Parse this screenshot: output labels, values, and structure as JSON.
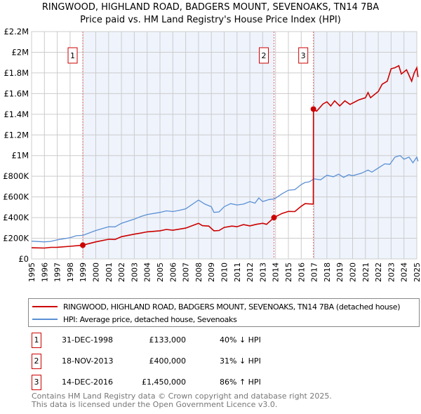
{
  "title_line1": "RINGWOOD, HIGHLAND ROAD, BADGERS MOUNT, SEVENOAKS, TN14 7BA",
  "title_line2": "Price paid vs. HM Land Registry's House Price Index (HPI)",
  "chart_data": {
    "type": "line",
    "xlim": [
      1995,
      2025
    ],
    "ylim": [
      0,
      2200000
    ],
    "yticks": [
      {
        "v": 0,
        "label": "£0"
      },
      {
        "v": 200000,
        "label": "£200K"
      },
      {
        "v": 400000,
        "label": "£400K"
      },
      {
        "v": 600000,
        "label": "£600K"
      },
      {
        "v": 800000,
        "label": "£800K"
      },
      {
        "v": 1000000,
        "label": "£1M"
      },
      {
        "v": 1200000,
        "label": "£1.2M"
      },
      {
        "v": 1400000,
        "label": "£1.4M"
      },
      {
        "v": 1600000,
        "label": "£1.6M"
      },
      {
        "v": 1800000,
        "label": "£1.8M"
      },
      {
        "v": 2000000,
        "label": "£2M"
      },
      {
        "v": 2200000,
        "label": "£2.2M"
      }
    ],
    "xticks": [
      "1995",
      "1996",
      "1997",
      "1998",
      "1999",
      "2000",
      "2001",
      "2002",
      "2003",
      "2004",
      "2005",
      "2006",
      "2007",
      "2008",
      "2009",
      "2010",
      "2011",
      "2012",
      "2013",
      "2014",
      "2015",
      "2016",
      "2017",
      "2018",
      "2019",
      "2020",
      "2021",
      "2022",
      "2023",
      "2024",
      "2025"
    ],
    "grid": true,
    "colors": {
      "property": "#cc0000",
      "hpi": "#5b8fd4",
      "shade": "#eef3fc"
    },
    "series": [
      {
        "name": "RINGWOOD, HIGHLAND ROAD, BADGERS MOUNT, SEVENOAKS, TN14 7BA (detached house)",
        "points": [
          [
            1995,
            108000
          ],
          [
            1996,
            105000
          ],
          [
            1996.5,
            112000
          ],
          [
            1997,
            113000
          ],
          [
            1998,
            122000
          ],
          [
            1998.99,
            133000
          ],
          [
            2000,
            165000
          ],
          [
            2001,
            190000
          ],
          [
            2001.5,
            188000
          ],
          [
            2002,
            215000
          ],
          [
            2003,
            240000
          ],
          [
            2003.5,
            250000
          ],
          [
            2004,
            262000
          ],
          [
            2005,
            272000
          ],
          [
            2005.5,
            285000
          ],
          [
            2006,
            278000
          ],
          [
            2007,
            298000
          ],
          [
            2008,
            345000
          ],
          [
            2008.3,
            322000
          ],
          [
            2008.8,
            318000
          ],
          [
            2009.2,
            272000
          ],
          [
            2009.6,
            275000
          ],
          [
            2010,
            305000
          ],
          [
            2010.6,
            318000
          ],
          [
            2011,
            312000
          ],
          [
            2011.5,
            332000
          ],
          [
            2012,
            320000
          ],
          [
            2012.5,
            335000
          ],
          [
            2013,
            345000
          ],
          [
            2013.3,
            335000
          ],
          [
            2013.88,
            400000
          ],
          [
            2014.5,
            440000
          ],
          [
            2015,
            460000
          ],
          [
            2015.5,
            458000
          ],
          [
            2016,
            510000
          ],
          [
            2016.3,
            535000
          ],
          [
            2016.94,
            530000
          ],
          [
            2016.95,
            1450000
          ],
          [
            2017.2,
            1430000
          ],
          [
            2017.7,
            1500000
          ],
          [
            2018,
            1520000
          ],
          [
            2018.3,
            1480000
          ],
          [
            2018.6,
            1530000
          ],
          [
            2019,
            1480000
          ],
          [
            2019.4,
            1530000
          ],
          [
            2019.8,
            1495000
          ],
          [
            2020.5,
            1540000
          ],
          [
            2021,
            1560000
          ],
          [
            2021.2,
            1610000
          ],
          [
            2021.4,
            1560000
          ],
          [
            2022,
            1620000
          ],
          [
            2022.3,
            1690000
          ],
          [
            2022.7,
            1720000
          ],
          [
            2023,
            1840000
          ],
          [
            2023.3,
            1850000
          ],
          [
            2023.6,
            1870000
          ],
          [
            2023.8,
            1790000
          ],
          [
            2024.2,
            1830000
          ],
          [
            2024.6,
            1720000
          ],
          [
            2024.8,
            1800000
          ],
          [
            2025,
            1850000
          ],
          [
            2025.1,
            1760000
          ]
        ]
      },
      {
        "name": "HPI: Average price, detached house, Sevenoaks",
        "points": [
          [
            1995,
            172000
          ],
          [
            1996,
            165000
          ],
          [
            1996.5,
            170000
          ],
          [
            1997,
            185000
          ],
          [
            1998,
            205000
          ],
          [
            1998.5,
            225000
          ],
          [
            1999,
            228000
          ],
          [
            2000,
            275000
          ],
          [
            2001,
            312000
          ],
          [
            2001.5,
            310000
          ],
          [
            2002,
            345000
          ],
          [
            2003,
            385000
          ],
          [
            2003.5,
            410000
          ],
          [
            2004,
            430000
          ],
          [
            2005,
            450000
          ],
          [
            2005.5,
            465000
          ],
          [
            2006,
            458000
          ],
          [
            2006.5,
            470000
          ],
          [
            2007,
            485000
          ],
          [
            2008,
            570000
          ],
          [
            2008.5,
            530000
          ],
          [
            2009,
            505000
          ],
          [
            2009.2,
            450000
          ],
          [
            2009.6,
            455000
          ],
          [
            2010,
            505000
          ],
          [
            2010.5,
            535000
          ],
          [
            2011,
            522000
          ],
          [
            2011.5,
            530000
          ],
          [
            2012,
            555000
          ],
          [
            2012.4,
            540000
          ],
          [
            2012.7,
            590000
          ],
          [
            2013,
            555000
          ],
          [
            2013.5,
            575000
          ],
          [
            2013.9,
            580000
          ],
          [
            2014.5,
            630000
          ],
          [
            2015,
            665000
          ],
          [
            2015.5,
            670000
          ],
          [
            2016,
            720000
          ],
          [
            2016.3,
            740000
          ],
          [
            2016.6,
            745000
          ],
          [
            2017,
            775000
          ],
          [
            2017.5,
            765000
          ],
          [
            2018,
            810000
          ],
          [
            2018.5,
            795000
          ],
          [
            2018.9,
            820000
          ],
          [
            2019.3,
            790000
          ],
          [
            2019.7,
            815000
          ],
          [
            2020,
            805000
          ],
          [
            2020.7,
            830000
          ],
          [
            2021.2,
            860000
          ],
          [
            2021.5,
            840000
          ],
          [
            2022,
            880000
          ],
          [
            2022.5,
            920000
          ],
          [
            2022.9,
            915000
          ],
          [
            2023.3,
            985000
          ],
          [
            2023.7,
            1000000
          ],
          [
            2024,
            965000
          ],
          [
            2024.4,
            985000
          ],
          [
            2024.7,
            930000
          ],
          [
            2025,
            985000
          ],
          [
            2025.1,
            945000
          ]
        ]
      }
    ],
    "sales": [
      {
        "n": "1",
        "x": 1998.99,
        "value": 133000
      },
      {
        "n": "2",
        "x": 2013.88,
        "value": 400000
      },
      {
        "n": "3",
        "x": 2016.95,
        "value": 1450000
      }
    ]
  },
  "legend": {
    "property": "RINGWOOD, HIGHLAND ROAD, BADGERS MOUNT, SEVENOAKS, TN14 7BA (detached house)",
    "hpi": "HPI: Average price, detached house, Sevenoaks"
  },
  "transactions": [
    {
      "n": "1",
      "date": "31-DEC-1998",
      "price": "£133,000",
      "hpi": "40% ↓ HPI"
    },
    {
      "n": "2",
      "date": "18-NOV-2013",
      "price": "£400,000",
      "hpi": "31% ↓ HPI"
    },
    {
      "n": "3",
      "date": "14-DEC-2016",
      "price": "£1,450,000",
      "hpi": "86% ↑ HPI"
    }
  ],
  "footer": {
    "line1": "Contains HM Land Registry data © Crown copyright and database right 2025.",
    "line2": "This data is licensed under the Open Government Licence v3.0."
  }
}
